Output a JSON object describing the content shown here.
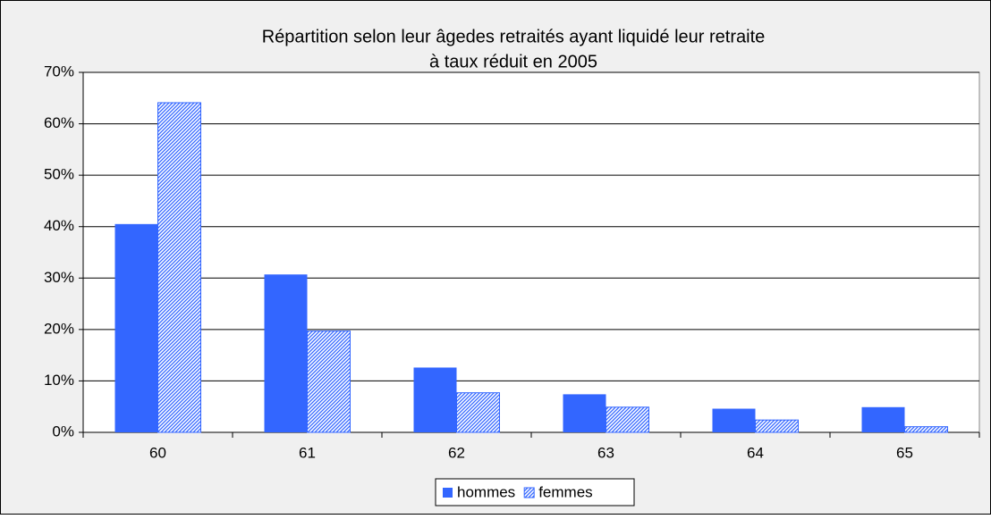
{
  "chart_data": {
    "type": "bar",
    "title": [
      "Répartition selon leur âgedes retraités ayant liquidé leur retraite",
      "à taux réduit en 2005"
    ],
    "categories": [
      "60",
      "61",
      "62",
      "63",
      "64",
      "65"
    ],
    "series": [
      {
        "name": "hommes",
        "color": "#3366ff",
        "hatched": false,
        "values": [
          40.5,
          30.7,
          12.6,
          7.4,
          4.6,
          4.9
        ]
      },
      {
        "name": "femmes",
        "color": "#3366ff",
        "hatched": true,
        "values": [
          64.1,
          19.7,
          7.7,
          4.9,
          2.4,
          1.1
        ]
      }
    ],
    "ylim": [
      0,
      70
    ],
    "yticks": [
      {
        "value": 0,
        "label": "0%"
      },
      {
        "value": 10,
        "label": "10%"
      },
      {
        "value": 20,
        "label": "20%"
      },
      {
        "value": 30,
        "label": "30%"
      },
      {
        "value": 40,
        "label": "40%"
      },
      {
        "value": 50,
        "label": "50%"
      },
      {
        "value": 60,
        "label": "60%"
      },
      {
        "value": 70,
        "label": "70%"
      }
    ],
    "grid": true,
    "legend": "bottom"
  }
}
